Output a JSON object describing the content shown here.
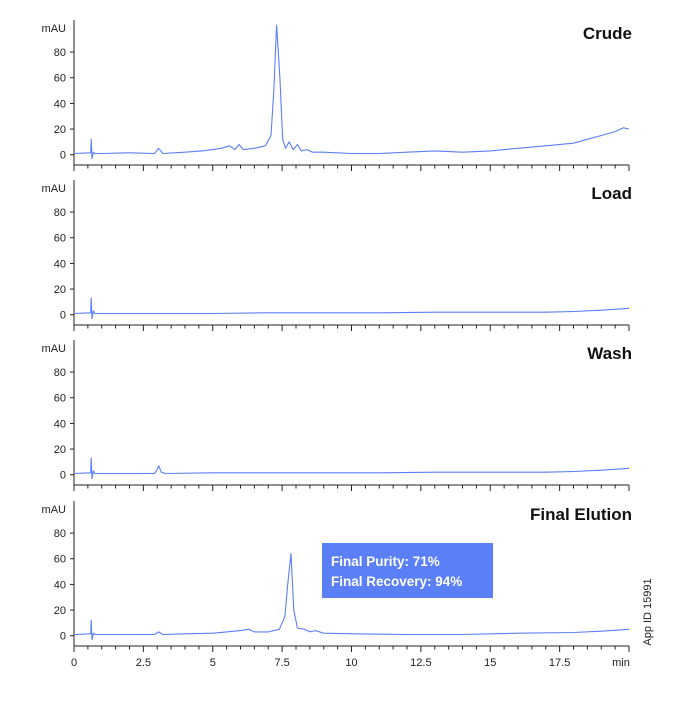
{
  "colors": {
    "trace": "#5b7ff7",
    "axis": "#222222",
    "callout_bg": "#5b7ff7"
  },
  "app_id": "App ID 15991",
  "callout": {
    "purity": "Final Purity: 71%",
    "recovery": "Final Recovery: 94%"
  },
  "chart_data": {
    "type": "line",
    "layout": "stacked-panels-shared-x",
    "x_axis": {
      "unit": "min",
      "range": [
        0,
        20
      ],
      "ticks": [
        0,
        2.5,
        5,
        7.5,
        10,
        12.5,
        15,
        17.5
      ],
      "tick_labels": [
        "0",
        "2.5",
        "5",
        "7.5",
        "10",
        "12.5",
        "15",
        "17.5"
      ],
      "unit_label": "min",
      "minor_step": 0.5
    },
    "panels": [
      {
        "title": "Crude",
        "ylabel": "mAU",
        "ylim": [
          -8,
          105
        ],
        "yticks": [
          0,
          20,
          40,
          60,
          80
        ],
        "x": [
          0,
          0.6,
          0.62,
          0.65,
          0.7,
          0.75,
          1,
          2,
          2.9,
          3.05,
          3.2,
          4,
          4.6,
          5,
          5.3,
          5.6,
          5.8,
          5.95,
          6.1,
          6.5,
          6.9,
          7.1,
          7.2,
          7.3,
          7.42,
          7.52,
          7.62,
          7.75,
          7.9,
          8.05,
          8.2,
          8.4,
          8.6,
          9,
          10,
          11,
          12,
          13,
          14,
          15,
          16,
          17,
          18,
          18.5,
          19,
          19.5,
          19.8,
          20
        ],
        "y": [
          1,
          1.5,
          12,
          -3,
          2,
          1,
          1,
          1.5,
          1,
          5,
          1,
          2,
          3,
          4,
          5,
          7,
          4,
          8,
          4,
          5,
          7,
          15,
          50,
          101,
          60,
          12,
          5,
          10,
          4,
          8,
          3,
          4,
          2,
          2,
          1,
          1,
          2,
          3,
          2,
          3,
          5,
          7,
          9,
          12,
          15,
          18,
          21,
          20
        ]
      },
      {
        "title": "Load",
        "ylabel": "mAU",
        "ylim": [
          -8,
          105
        ],
        "yticks": [
          0,
          20,
          40,
          60,
          80
        ],
        "x": [
          0,
          0.6,
          0.62,
          0.65,
          0.7,
          0.75,
          1,
          3,
          5,
          7,
          9,
          11,
          13,
          15,
          17,
          18,
          19,
          20
        ],
        "y": [
          1,
          1.5,
          13,
          -3,
          3,
          1,
          1,
          1,
          1,
          1.5,
          1.5,
          1.5,
          2,
          2,
          2,
          2.5,
          3.5,
          5
        ]
      },
      {
        "title": "Wash",
        "ylabel": "mAU",
        "ylim": [
          -8,
          105
        ],
        "yticks": [
          0,
          20,
          40,
          60,
          80
        ],
        "x": [
          0,
          0.6,
          0.62,
          0.65,
          0.7,
          0.75,
          1,
          2.9,
          3.0,
          3.05,
          3.15,
          3.3,
          5,
          7,
          9,
          11,
          13,
          15,
          17,
          18,
          19,
          20
        ],
        "y": [
          1,
          1.5,
          13,
          -3,
          3,
          1,
          1,
          1,
          4,
          7,
          2,
          1,
          1.5,
          1.5,
          1.5,
          1.5,
          2,
          2,
          2,
          2.5,
          3.5,
          5
        ]
      },
      {
        "title": "Final Elution",
        "ylabel": "mAU",
        "ylim": [
          -8,
          105
        ],
        "yticks": [
          0,
          20,
          40,
          60,
          80
        ],
        "x": [
          0,
          0.6,
          0.62,
          0.65,
          0.7,
          0.75,
          1,
          2.9,
          3.05,
          3.2,
          4,
          5,
          5.5,
          6,
          6.3,
          6.5,
          7,
          7.4,
          7.6,
          7.7,
          7.82,
          7.92,
          8.05,
          8.3,
          8.5,
          8.7,
          9,
          10,
          12,
          14,
          16,
          18,
          19,
          20
        ],
        "y": [
          1,
          1.5,
          12,
          -3,
          2,
          1,
          1,
          1,
          3,
          1,
          1.5,
          2,
          3,
          4,
          5,
          3,
          3,
          5,
          15,
          40,
          64,
          20,
          6,
          5,
          3,
          4,
          2,
          1.5,
          1,
          1,
          2,
          2.5,
          3.5,
          5
        ]
      }
    ]
  }
}
